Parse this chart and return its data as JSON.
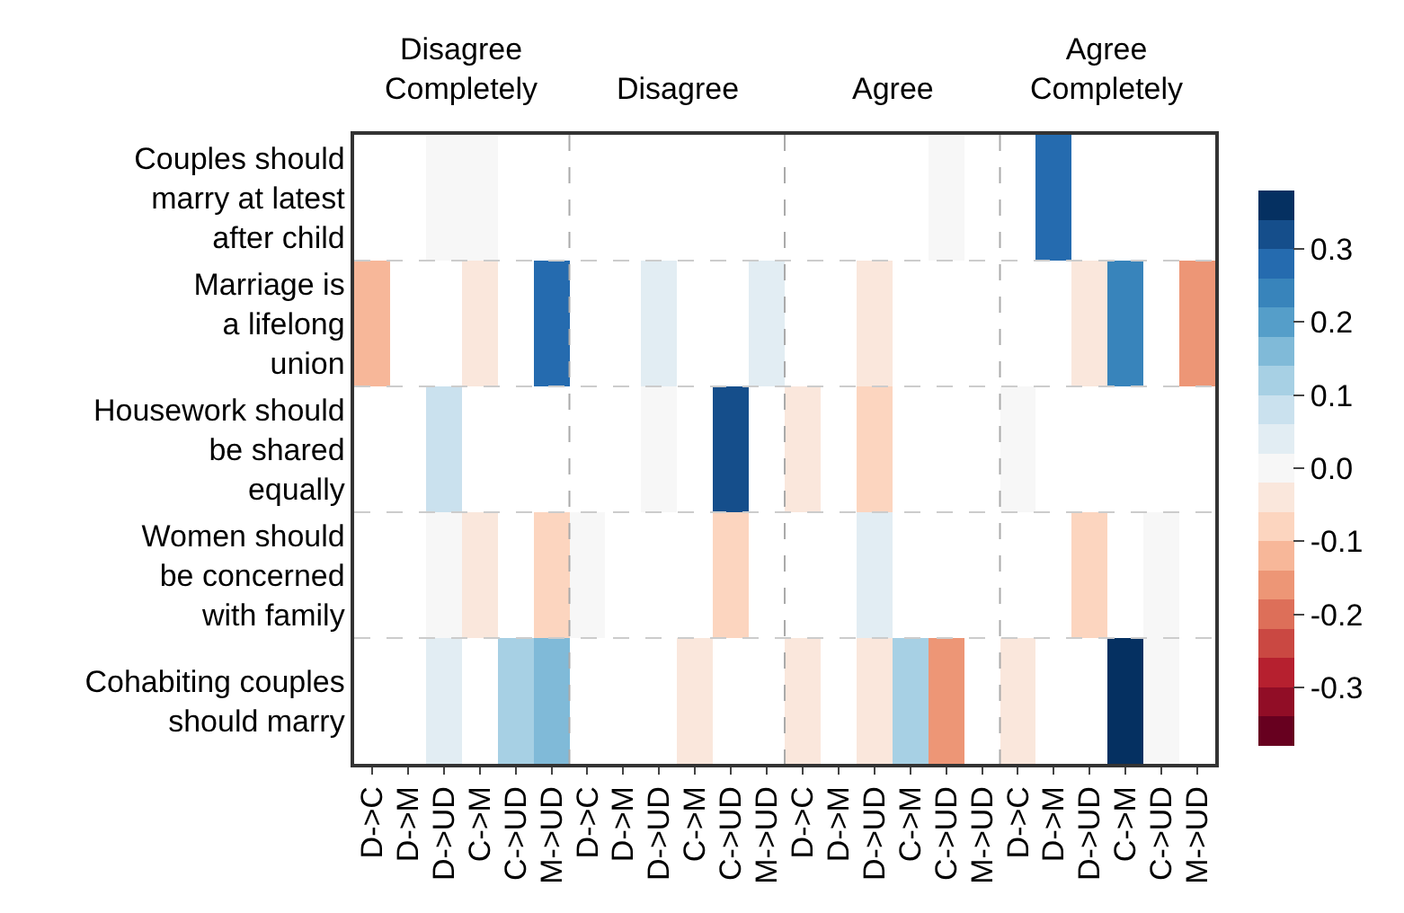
{
  "chart_data": {
    "type": "heatmap",
    "categories": [
      "D->C",
      "D->M",
      "D->UD",
      "C->M",
      "C->UD",
      "M->UD",
      "D->C",
      "D->M",
      "D->UD",
      "C->M",
      "C->UD",
      "M->UD",
      "D->C",
      "D->M",
      "D->UD",
      "C->M",
      "C->UD",
      "M->UD",
      "D->C",
      "D->M",
      "D->UD",
      "C->M",
      "C->UD",
      "M->UD"
    ],
    "y_categories": [
      "Couples should\nmarry at latest\nafter child",
      "Marriage is\na lifelong\nunion",
      "Housework should\nbe shared\nequally",
      "Women should\nbe concerned\nwith family",
      "Cohabiting couples\nshould marry"
    ],
    "cells": [
      [
        null,
        null,
        0.0,
        0.0,
        null,
        null,
        null,
        null,
        null,
        null,
        null,
        null,
        null,
        null,
        null,
        null,
        0.0,
        null,
        null,
        0.28,
        null,
        null,
        null,
        null
      ],
      [
        -0.12,
        null,
        null,
        -0.04,
        null,
        0.28,
        null,
        null,
        0.04,
        null,
        null,
        0.04,
        null,
        null,
        -0.04,
        null,
        null,
        null,
        null,
        null,
        -0.04,
        0.24,
        null,
        -0.16
      ],
      [
        null,
        null,
        0.08,
        null,
        null,
        null,
        null,
        null,
        0.0,
        null,
        0.32,
        null,
        -0.04,
        null,
        -0.08,
        null,
        null,
        null,
        0.0,
        null,
        null,
        null,
        null,
        null
      ],
      [
        null,
        null,
        0.0,
        -0.04,
        null,
        -0.08,
        0.0,
        null,
        null,
        null,
        -0.08,
        null,
        null,
        null,
        0.04,
        null,
        null,
        null,
        null,
        null,
        -0.08,
        null,
        0.0,
        null
      ],
      [
        null,
        null,
        0.04,
        null,
        0.12,
        0.16,
        null,
        null,
        null,
        -0.04,
        null,
        null,
        -0.04,
        null,
        -0.04,
        0.12,
        -0.16,
        null,
        -0.04,
        null,
        null,
        0.36,
        0.0,
        null
      ]
    ],
    "clim": [
      -0.38,
      0.38
    ],
    "cticks": [
      -0.3,
      -0.2,
      -0.1,
      {
        "value": 0,
        "label": "0.0"
      },
      0.1,
      0.2,
      0.3
    ],
    "annotations": [
      "Disagree\nCompletely",
      "Disagree",
      "Agree",
      "Agree\nCompletely"
    ],
    "grid": true
  }
}
